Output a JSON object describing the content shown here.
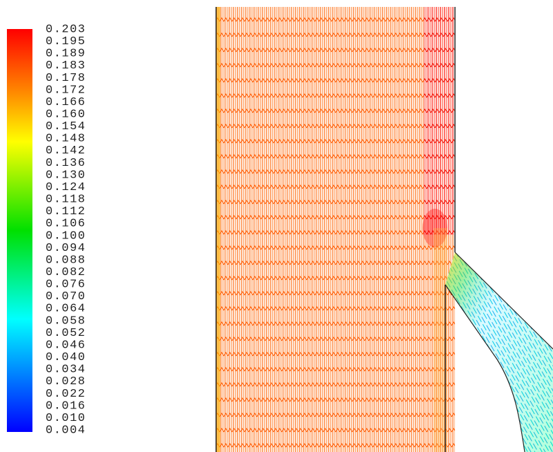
{
  "colorbar": {
    "labels": [
      "0.203",
      "0.195",
      "0.189",
      "0.183",
      "0.178",
      "0.172",
      "0.166",
      "0.160",
      "0.154",
      "0.148",
      "0.142",
      "0.136",
      "0.130",
      "0.124",
      "0.118",
      "0.112",
      "0.106",
      "0.100",
      "0.094",
      "0.088",
      "0.082",
      "0.076",
      "0.070",
      "0.064",
      "0.058",
      "0.052",
      "0.046",
      "0.040",
      "0.034",
      "0.028",
      "0.022",
      "0.016",
      "0.010",
      "0.004"
    ]
  }
}
